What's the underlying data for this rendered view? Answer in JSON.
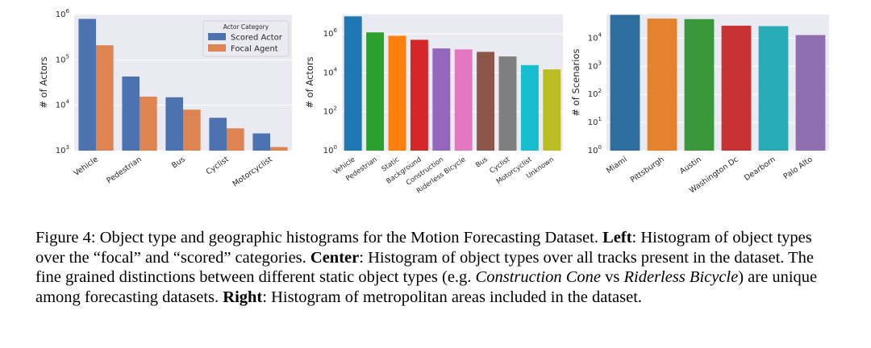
{
  "chart_data": [
    {
      "type": "bar",
      "title": "",
      "xlabel": "",
      "ylabel": "# of Actors",
      "yscale": "log",
      "ylim": [
        1000,
        1000000
      ],
      "yticks": [
        {
          "value": 1000,
          "base": "10",
          "exp": "3"
        },
        {
          "value": 10000,
          "base": "10",
          "exp": "4"
        },
        {
          "value": 100000,
          "base": "10",
          "exp": "5"
        },
        {
          "value": 1000000,
          "base": "10",
          "exp": "6"
        }
      ],
      "categories": [
        "Vehicle",
        "Pedestrian",
        "Bus",
        "Cyclist",
        "Motorcyclist"
      ],
      "legend": {
        "title": "Actor Category",
        "position": "top-right"
      },
      "series": [
        {
          "name": "Scored Actor",
          "color": "#4c72b0",
          "values": [
            800000,
            43000,
            15000,
            5300,
            2400
          ]
        },
        {
          "name": "Focal Agent",
          "color": "#dd8452",
          "values": [
            210000,
            15500,
            8000,
            3100,
            1200
          ]
        }
      ]
    },
    {
      "type": "bar",
      "title": "",
      "xlabel": "",
      "ylabel": "# of Actors",
      "yscale": "log",
      "ylim": [
        1,
        10000000
      ],
      "yticks": [
        {
          "value": 1,
          "base": "10",
          "exp": "0"
        },
        {
          "value": 100,
          "base": "10",
          "exp": "2"
        },
        {
          "value": 10000,
          "base": "10",
          "exp": "4"
        },
        {
          "value": 1000000,
          "base": "10",
          "exp": "6"
        }
      ],
      "categories": [
        "Vehicle",
        "Pedestrian",
        "Static",
        "Background",
        "Construction",
        "Riderless Bicycle",
        "Bus",
        "Cyclist",
        "Motorcyclist",
        "Unknown"
      ],
      "colors": [
        "#1f77b4",
        "#2ca02c",
        "#ff7f0e",
        "#d62728",
        "#9467bd",
        "#e377c2",
        "#8c564b",
        "#7f7f7f",
        "#17becf",
        "#bcbd22"
      ],
      "values": [
        8000000,
        1200000,
        800000,
        500000,
        180000,
        160000,
        120000,
        70000,
        25000,
        15000
      ]
    },
    {
      "type": "bar",
      "title": "",
      "xlabel": "",
      "ylabel": "# of Scenarios",
      "yscale": "log",
      "ylim": [
        1,
        70000
      ],
      "yticks": [
        {
          "value": 1,
          "base": "10",
          "exp": "0"
        },
        {
          "value": 10,
          "base": "10",
          "exp": "1"
        },
        {
          "value": 100,
          "base": "10",
          "exp": "2"
        },
        {
          "value": 1000,
          "base": "10",
          "exp": "3"
        },
        {
          "value": 10000,
          "base": "10",
          "exp": "4"
        }
      ],
      "categories": [
        "Miami",
        "Pittsburgh",
        "Austin",
        "Washington Dc",
        "Dearborn",
        "Palo Alto"
      ],
      "colors": [
        "#2e6e9e",
        "#e6812d",
        "#3a983a",
        "#c83233",
        "#2aacb8",
        "#8f6fb0"
      ],
      "values": [
        68000,
        50000,
        48000,
        28000,
        27000,
        13000
      ]
    }
  ],
  "caption": {
    "segments": [
      {
        "text": "Figure 4: Object type and geographic histograms for the Motion Forecasting Dataset. ",
        "style": "normal"
      },
      {
        "text": "Left",
        "style": "bold"
      },
      {
        "text": ": Histogram of object types over the “focal” and “scored” categories. ",
        "style": "normal"
      },
      {
        "text": "Center",
        "style": "bold"
      },
      {
        "text": ": Histogram of object types over all tracks present in the dataset. The fine grained distinctions between different static object types (e.g. ",
        "style": "normal"
      },
      {
        "text": "Construction Cone",
        "style": "italic"
      },
      {
        "text": " vs ",
        "style": "normal"
      },
      {
        "text": "Riderless Bicycle",
        "style": "italic"
      },
      {
        "text": ") are unique among forecasting datasets. ",
        "style": "normal"
      },
      {
        "text": "Right",
        "style": "bold"
      },
      {
        "text": ": Histogram of metropolitan areas included in the dataset.",
        "style": "normal"
      }
    ]
  }
}
